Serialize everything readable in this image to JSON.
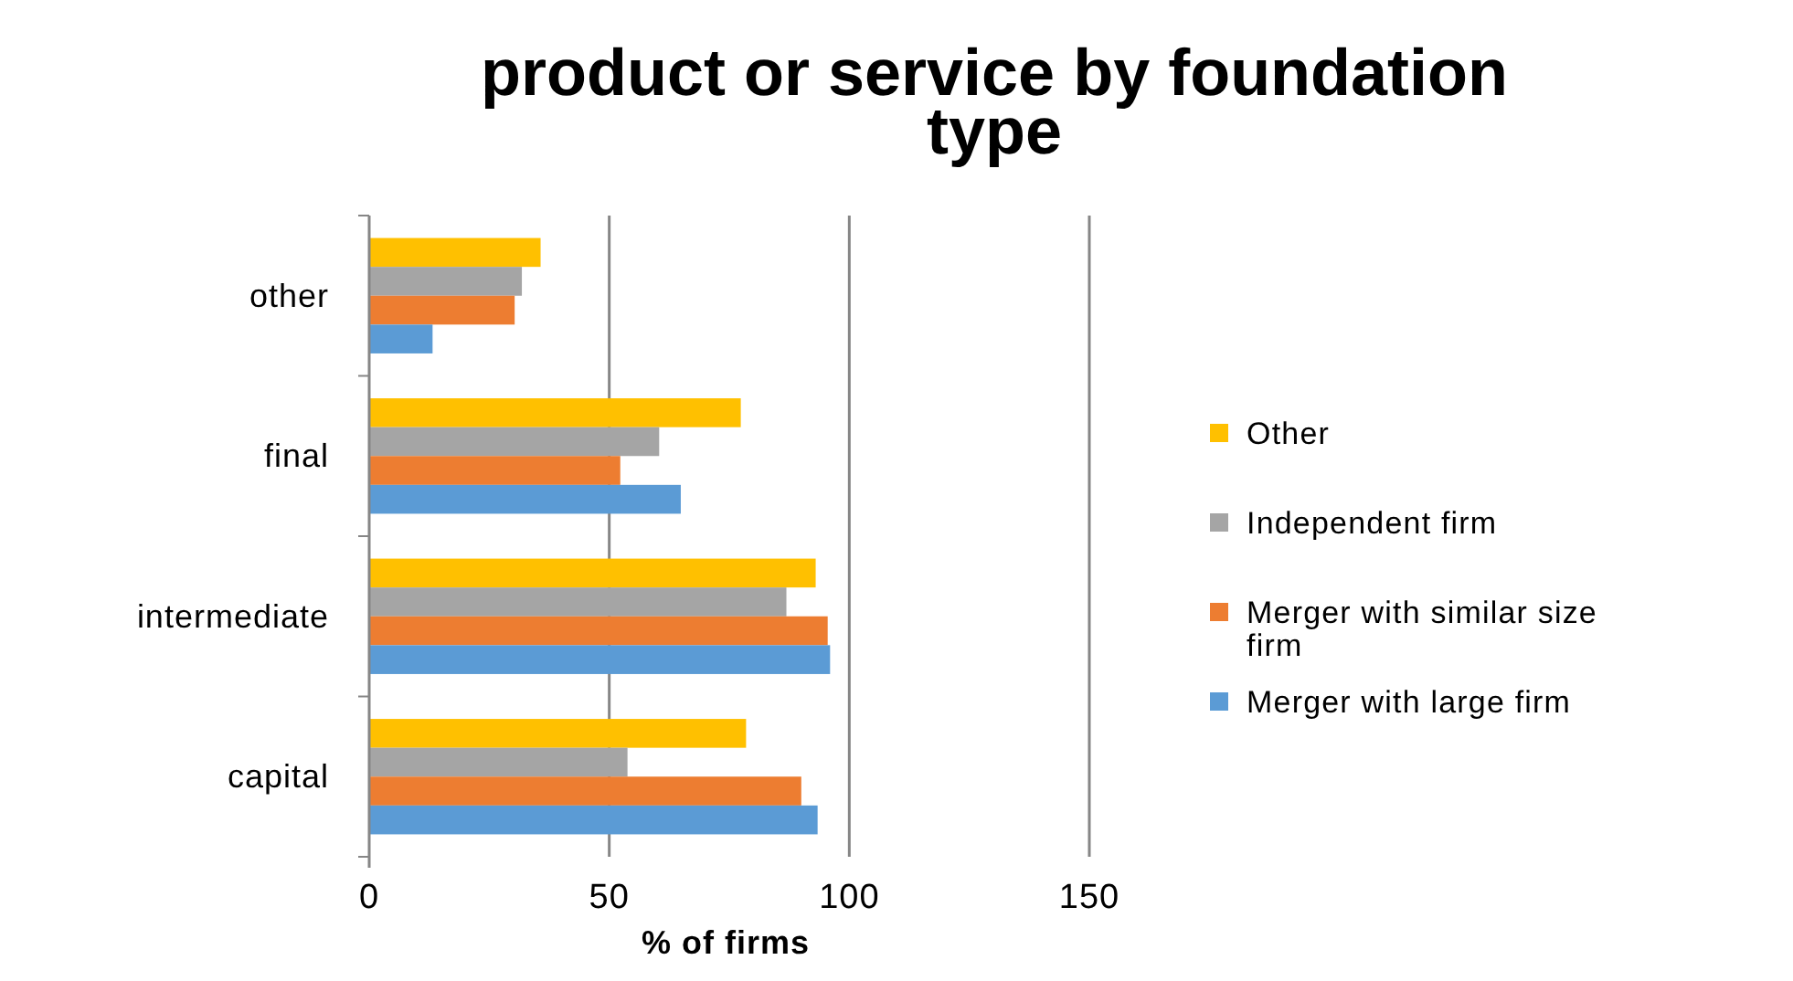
{
  "chart_data": {
    "type": "bar",
    "orientation": "horizontal",
    "title": "product or service by foundation type",
    "xlabel": "% of firms",
    "categories": [
      "other",
      "final",
      "intermediate",
      "capital"
    ],
    "series": [
      {
        "name": "Other",
        "color": "#ffc000",
        "values": [
          35.7,
          77.4,
          93,
          78.5
        ]
      },
      {
        "name": "Independent firm",
        "color": "#a5a5a5",
        "values": [
          31.8,
          60.4,
          86.9,
          53.8
        ]
      },
      {
        "name": "Merger with similar size firm",
        "color": "#ed7d31",
        "values": [
          30.3,
          52.3,
          95.5,
          90
        ]
      },
      {
        "name": "Merger with large firm",
        "color": "#5b9bd5",
        "values": [
          13.2,
          64.9,
          96,
          93.4
        ]
      }
    ],
    "xlim": [
      0,
      150
    ],
    "xticks": [
      0,
      50,
      100,
      150
    ],
    "grid": "x",
    "legend": "right"
  }
}
